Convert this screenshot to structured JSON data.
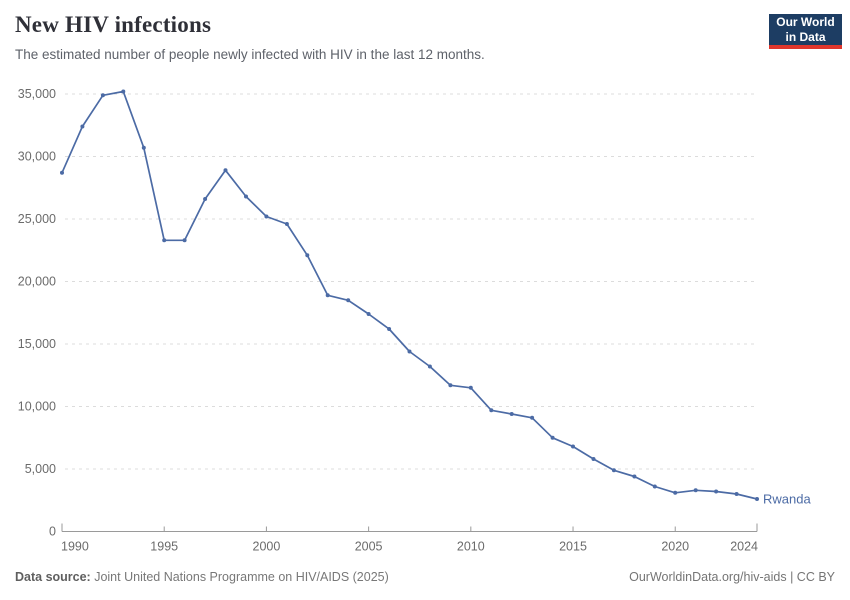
{
  "logo": {
    "line1": "Our World",
    "line2": "in Data",
    "bg_color": "#1d3d63",
    "accent_color": "#e0362c"
  },
  "footer": {
    "source_label": "Data source:",
    "source_text": " Joint United Nations Programme on HIV/AIDS (2025)",
    "license_text": "OurWorldinData.org/hiv-aids | CC BY"
  },
  "chart_data": {
    "type": "line",
    "title": "New HIV infections",
    "subtitle": "The estimated number of people newly infected with HIV in the last 12 months.",
    "entity_label": "Rwanda",
    "xlim": [
      1990,
      2024
    ],
    "ylim": [
      0,
      35000
    ],
    "grid": "horizontal-dashed",
    "legend_position": "end-of-line-label",
    "line_color": "#4c6ba5",
    "series": [
      {
        "name": "Rwanda",
        "color": "#4c6ba5",
        "x": [
          1990,
          1991,
          1992,
          1993,
          1994,
          1995,
          1996,
          1997,
          1998,
          1999,
          2000,
          2001,
          2002,
          2003,
          2004,
          2005,
          2006,
          2007,
          2008,
          2009,
          2010,
          2011,
          2012,
          2013,
          2014,
          2015,
          2016,
          2017,
          2018,
          2019,
          2020,
          2021,
          2022,
          2023,
          2024
        ],
        "values": [
          28700,
          32400,
          34900,
          35200,
          30700,
          23300,
          23300,
          26600,
          28900,
          26800,
          25200,
          24600,
          22100,
          18900,
          18500,
          17400,
          16200,
          14400,
          13200,
          11700,
          11500,
          9700,
          9400,
          9100,
          7500,
          6800,
          5800,
          4900,
          4400,
          3600,
          3100,
          3300,
          3200,
          3000,
          2600
        ]
      }
    ],
    "x_ticks": [
      {
        "year": 1990,
        "label": "1990"
      },
      {
        "year": 1995,
        "label": "1995"
      },
      {
        "year": 2000,
        "label": "2000"
      },
      {
        "year": 2005,
        "label": "2005"
      },
      {
        "year": 2010,
        "label": "2010"
      },
      {
        "year": 2015,
        "label": "2015"
      },
      {
        "year": 2020,
        "label": "2020"
      },
      {
        "year": 2024,
        "label": "2024"
      }
    ],
    "y_ticks": [
      {
        "value": 0,
        "label": "0"
      },
      {
        "value": 5000,
        "label": "5,000"
      },
      {
        "value": 10000,
        "label": "10,000"
      },
      {
        "value": 15000,
        "label": "15,000"
      },
      {
        "value": 20000,
        "label": "20,000"
      },
      {
        "value": 25000,
        "label": "25,000"
      },
      {
        "value": 30000,
        "label": "30,000"
      },
      {
        "value": 35000,
        "label": "35,000"
      }
    ]
  }
}
